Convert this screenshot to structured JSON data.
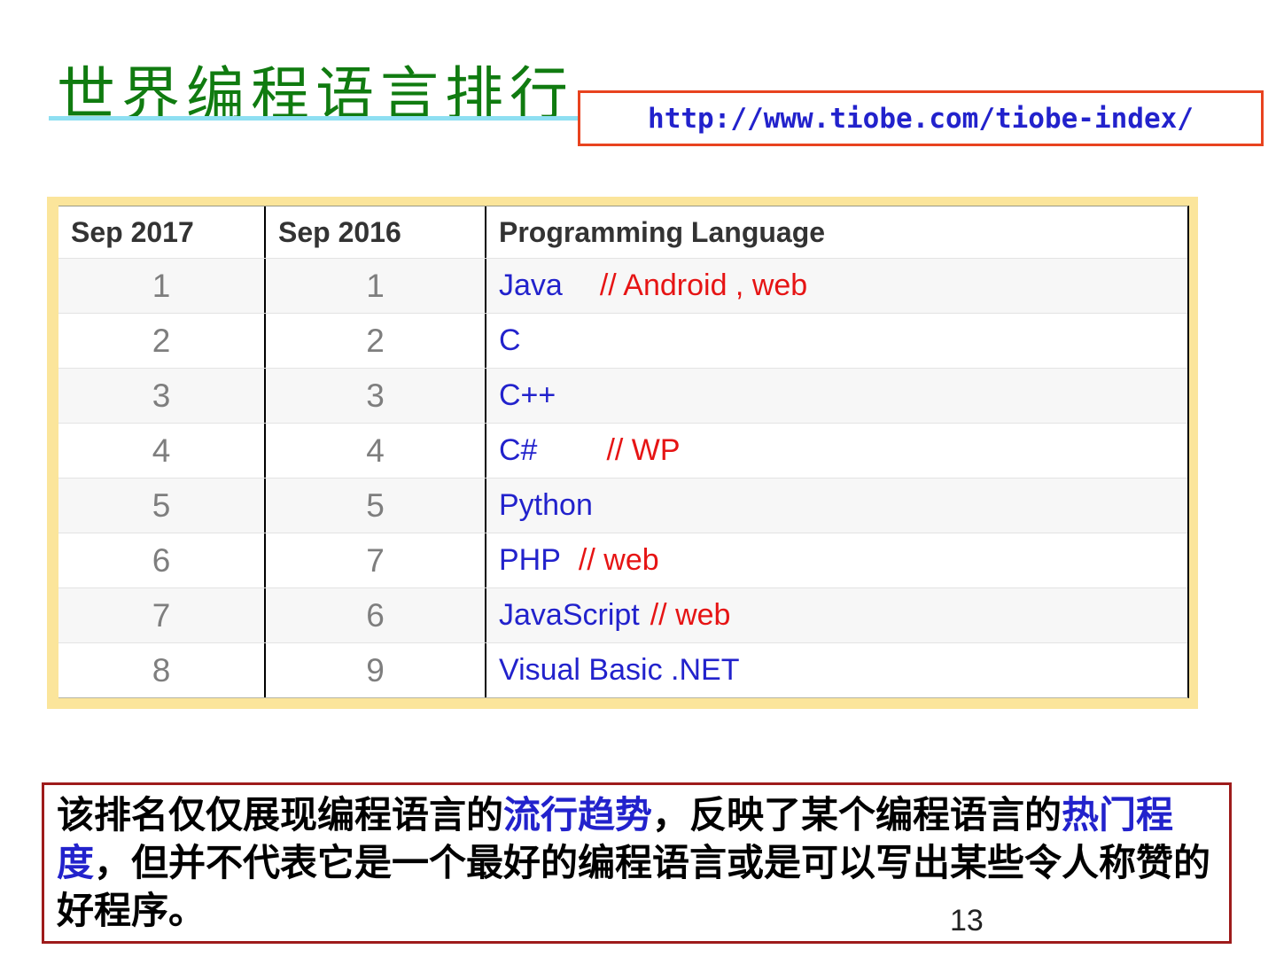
{
  "header": {
    "title": "世界编程语言排行",
    "url": "http://www.tiobe.com/tiobe-index/"
  },
  "table": {
    "columns": [
      "Sep 2017",
      "Sep 2016",
      "Programming Language"
    ],
    "rows": [
      {
        "sep2017": "1",
        "sep2016": "1",
        "language": "Java",
        "comment": "// Android , web"
      },
      {
        "sep2017": "2",
        "sep2016": "2",
        "language": "C",
        "comment": ""
      },
      {
        "sep2017": "3",
        "sep2016": "3",
        "language": "C++",
        "comment": ""
      },
      {
        "sep2017": "4",
        "sep2016": "4",
        "language": "C#",
        "comment": "// WP"
      },
      {
        "sep2017": "5",
        "sep2016": "5",
        "language": "Python",
        "comment": ""
      },
      {
        "sep2017": "6",
        "sep2016": "7",
        "language": "PHP",
        "comment": "// web"
      },
      {
        "sep2017": "7",
        "sep2016": "6",
        "language": "JavaScript",
        "comment": "// web"
      },
      {
        "sep2017": "8",
        "sep2016": "9",
        "language": "Visual Basic .NET",
        "comment": ""
      }
    ]
  },
  "note": {
    "lines": [
      {
        "seg0": "该排名仅仅展现编程语言的",
        "seg1": "流行趋势",
        "seg2": "，反映了某个编程语言的",
        "seg3": "热门程"
      },
      {
        "seg0": "度",
        "seg1": "，但并不代表它是一个最好的编程语言或是可以写出某些令人称赞的"
      },
      {
        "seg0": "好程序。"
      }
    ]
  },
  "page_number": "13",
  "colors": {
    "title_green": "#107B10",
    "underline_cyan": "#8EDFF2",
    "url_border": "#E8431F",
    "text_blue": "#2222CC",
    "comment_red": "#E61414",
    "frame_yellow": "#FBE59B",
    "note_border": "#9E1B1B",
    "rank_gray": "#7E7E7E",
    "header_dark": "#333333"
  }
}
